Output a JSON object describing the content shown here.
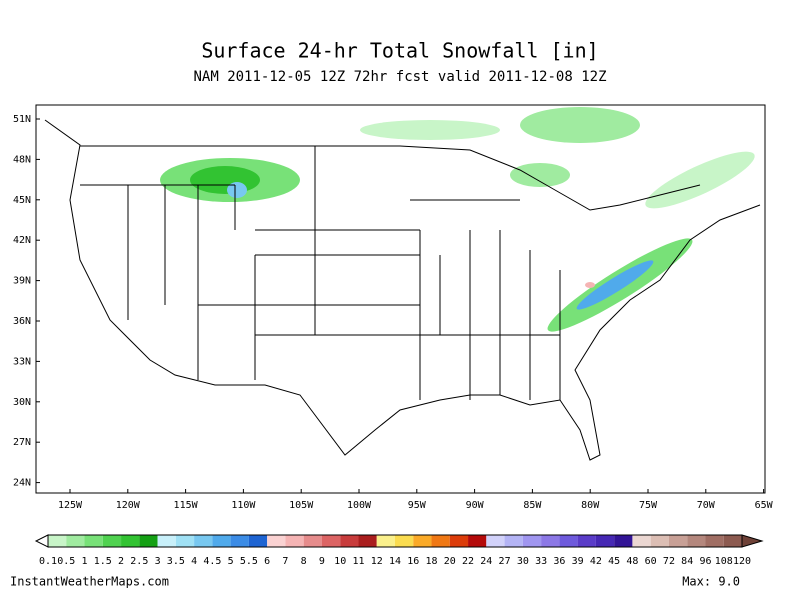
{
  "header": {
    "title": "Surface 24-hr Total Snowfall [in]",
    "subtitle": "NAM 2011-12-05 12Z 72hr fcst valid 2011-12-08 12Z"
  },
  "map": {
    "lat_labels": [
      "51N",
      "48N",
      "45N",
      "42N",
      "39N",
      "36N",
      "33N",
      "30N",
      "27N",
      "24N"
    ],
    "lon_labels": [
      "125W",
      "120W",
      "115W",
      "110W",
      "105W",
      "100W",
      "95W",
      "90W",
      "85W",
      "80W",
      "75W",
      "70W",
      "65W"
    ]
  },
  "legend": {
    "labels": [
      "0.1",
      "0.5",
      "1",
      "1.5",
      "2",
      "2.5",
      "3",
      "3.5",
      "4",
      "4.5",
      "5",
      "5.5",
      "6",
      "7",
      "8",
      "9",
      "10",
      "11",
      "12",
      "14",
      "16",
      "18",
      "20",
      "22",
      "24",
      "27",
      "30",
      "33",
      "36",
      "39",
      "42",
      "45",
      "48",
      "60",
      "72",
      "84",
      "96",
      "108",
      "120"
    ],
    "colors": [
      "#c8f5c8",
      "#a0eba0",
      "#78e178",
      "#50d250",
      "#32c332",
      "#14a014",
      "#c8f0fa",
      "#a0e1f5",
      "#78c8f0",
      "#50aaeb",
      "#3c8ce6",
      "#1e64d2",
      "#fad2d2",
      "#f5b4b4",
      "#e68c8c",
      "#dc6464",
      "#c83c3c",
      "#aa1e1e",
      "#faf08c",
      "#fadc50",
      "#faaa28",
      "#f07814",
      "#dc3c0a",
      "#b40a0a",
      "#d2d2fa",
      "#b4b4f5",
      "#a096f0",
      "#8c78e6",
      "#6e5adc",
      "#5a3cc8",
      "#4628b4",
      "#321496",
      "#ebd7d2",
      "#dcbeb4",
      "#c8a096",
      "#b4877d",
      "#a06e64",
      "#8c5a50"
    ],
    "under_color": "#ffffff",
    "over_color": "#6e4137"
  },
  "footer": {
    "site": "InstantWeatherMaps.com",
    "max": "Max:  9.0"
  }
}
